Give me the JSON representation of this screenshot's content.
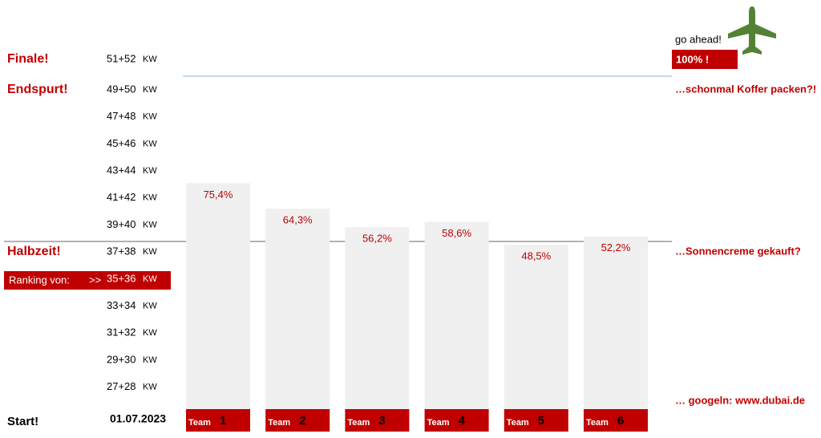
{
  "chart_data": {
    "type": "bar",
    "left_labels": {
      "finale": "Finale!",
      "endspurt": "Endspurt!",
      "halbzeit": "Halbzeit!",
      "ranking": "Ranking von:",
      "arrow": ">>",
      "start": "Start!",
      "date": "01.07.2023"
    },
    "week_unit": "KW",
    "weeks": [
      "51+52",
      "49+50",
      "47+48",
      "45+46",
      "43+44",
      "41+42",
      "39+40",
      "37+38",
      "35+36",
      "33+34",
      "31+32",
      "29+30",
      "27+28"
    ],
    "right_labels": {
      "go": "go ahead!",
      "full": "100% !",
      "koffer": "…schonmal Koffer packen?!",
      "sonne": "…Sonnencreme gekauft?",
      "google": "… googeln:  www.dubai.de"
    },
    "team_word": "Team",
    "categories": [
      "1",
      "2",
      "3",
      "4",
      "5",
      "6"
    ],
    "values": [
      75.4,
      64.3,
      56.2,
      58.6,
      48.5,
      52.2
    ],
    "value_labels": [
      "75,4%",
      "64,3%",
      "56,2%",
      "58,6%",
      "48,5%",
      "52,2%"
    ],
    "color": "#f0f0f0",
    "team_color": "#c00000"
  }
}
